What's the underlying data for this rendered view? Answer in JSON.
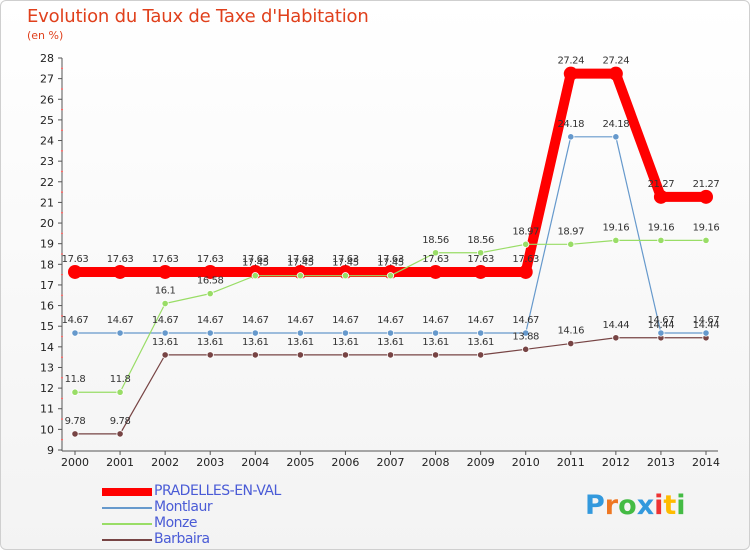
{
  "header": {
    "title": "Evolution du Taux de Taxe d'Habitation",
    "subtitle": "(en %)"
  },
  "chart_data": {
    "type": "line",
    "x": [
      "2000",
      "2001",
      "2002",
      "2003",
      "2004",
      "2005",
      "2006",
      "2007",
      "2008",
      "2009",
      "2010",
      "2011",
      "2012",
      "2013",
      "2014"
    ],
    "ylim": [
      9,
      28
    ],
    "yticks": [
      9,
      10,
      11,
      12,
      13,
      14,
      15,
      16,
      17,
      18,
      19,
      20,
      21,
      22,
      23,
      24,
      25,
      26,
      27,
      28
    ],
    "grid": false,
    "legend_position": "bottom-left",
    "series": [
      {
        "name": "PRADELLES-EN-VAL",
        "color": "#ff0000",
        "values": [
          17.63,
          17.63,
          17.63,
          17.63,
          17.63,
          17.63,
          17.63,
          17.63,
          17.63,
          17.63,
          17.63,
          27.24,
          27.24,
          21.27,
          21.27
        ]
      },
      {
        "name": "Montlaur",
        "color": "#6699cc",
        "values": [
          14.67,
          14.67,
          14.67,
          14.67,
          14.67,
          14.67,
          14.67,
          14.67,
          14.67,
          14.67,
          14.67,
          24.18,
          24.18,
          14.67,
          14.67
        ]
      },
      {
        "name": "Monze",
        "color": "#99dd66",
        "values": [
          11.8,
          11.8,
          16.1,
          16.58,
          17.45,
          17.45,
          17.45,
          17.45,
          18.56,
          18.56,
          18.97,
          18.97,
          19.16,
          19.16,
          19.16
        ]
      },
      {
        "name": "Barbaira",
        "color": "#774444",
        "values": [
          9.78,
          9.78,
          13.61,
          13.61,
          13.61,
          13.61,
          13.61,
          13.61,
          13.61,
          13.61,
          13.88,
          14.16,
          14.44,
          14.44,
          14.44
        ]
      }
    ]
  },
  "brand": {
    "letters": [
      "P",
      "r",
      "o",
      "x",
      "i",
      "t",
      "i"
    ],
    "colors": [
      "#3399dd",
      "#ee7722",
      "#44bb44",
      "#3399dd",
      "#ee3333",
      "#ffbb00",
      "#44bb44"
    ]
  }
}
